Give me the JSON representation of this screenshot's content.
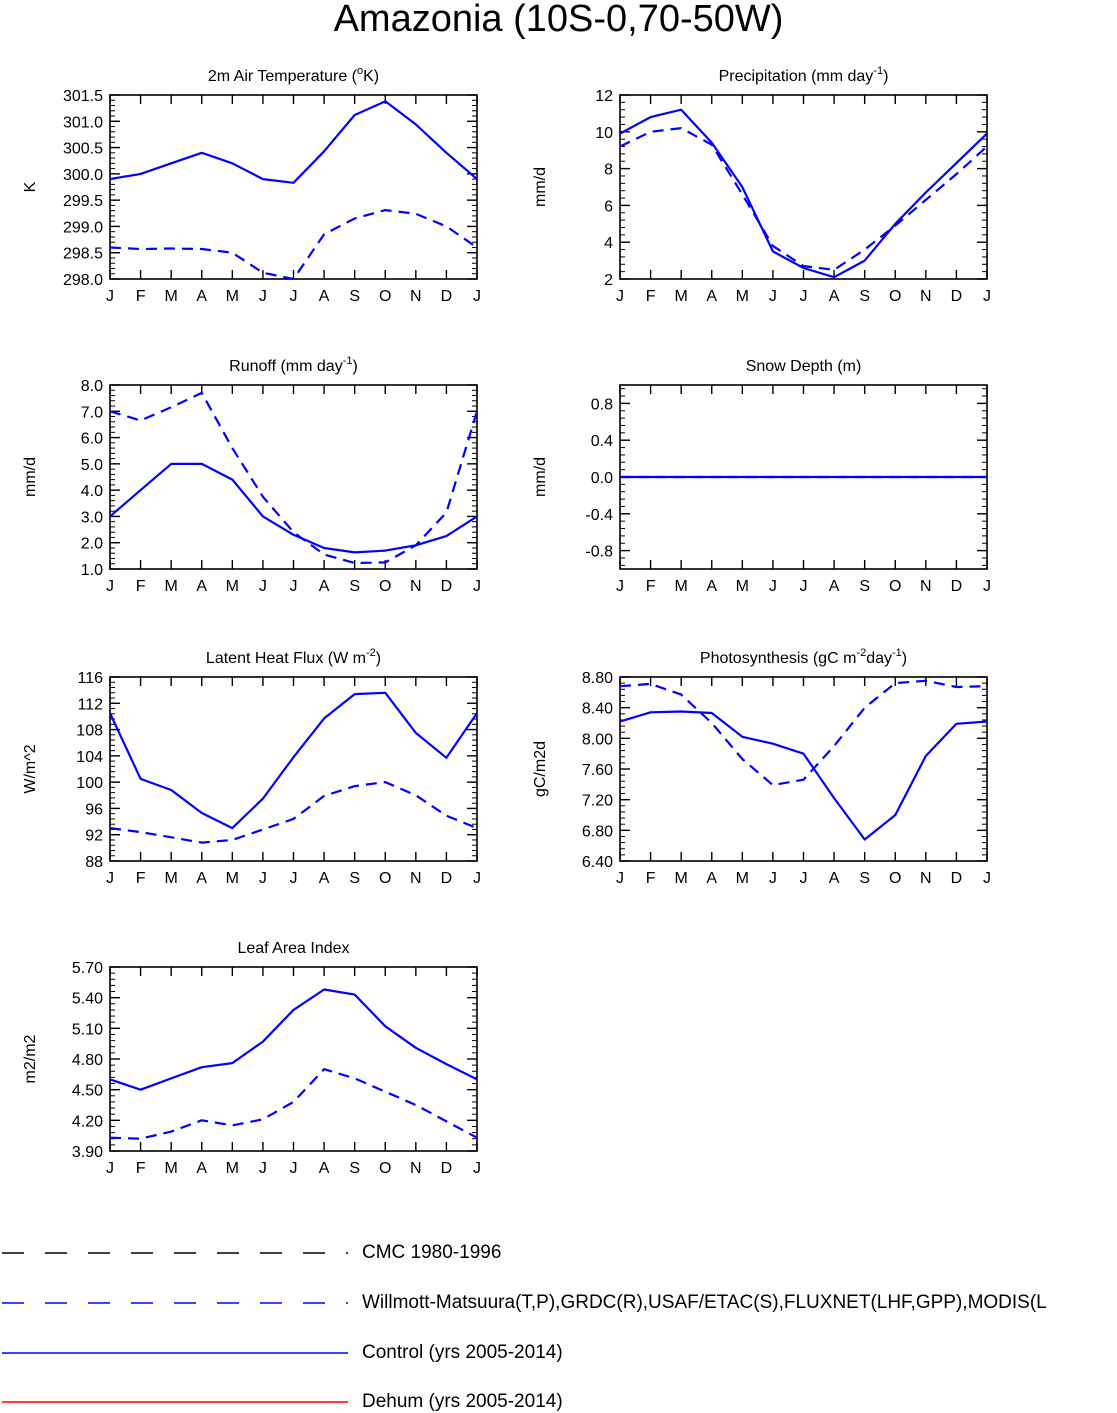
{
  "title": "Amazonia (10S-0,70-50W)",
  "colors": {
    "axis": "#000000",
    "model": "#0000ff",
    "cmc": "#000000",
    "obs": "#0000ff",
    "dehum": "#ff0000"
  },
  "chart_data": [
    {
      "type": "line",
      "id": "temp",
      "title": "2m Air Temperature (oK)",
      "title_parts": [
        "2m Air Temperature (",
        "o",
        "K)"
      ],
      "ylabel": "K",
      "categories": [
        "J",
        "F",
        "M",
        "A",
        "M",
        "J",
        "J",
        "A",
        "S",
        "O",
        "N",
        "D",
        "J"
      ],
      "ylim": [
        298.0,
        301.5
      ],
      "yticks": [
        "298.0",
        "298.5",
        "299.0",
        "299.5",
        "300.0",
        "300.5",
        "301.0",
        "301.5"
      ],
      "series": [
        {
          "name": "Control (yrs 2005-2014)",
          "style": "solid",
          "values": [
            299.9,
            300.0,
            300.2,
            300.4,
            300.2,
            299.9,
            299.83,
            300.43,
            301.12,
            301.38,
            300.94,
            300.4,
            299.9
          ]
        },
        {
          "name": "Willmott-Matsuura(T,P)",
          "style": "dashed",
          "values": [
            298.6,
            298.57,
            298.58,
            298.57,
            298.5,
            298.12,
            298.0,
            298.85,
            299.15,
            299.31,
            299.24,
            299.0,
            298.6
          ]
        }
      ]
    },
    {
      "type": "line",
      "id": "precip",
      "title": "Precipitation (mm day-1)",
      "title_parts": [
        "Precipitation (mm day",
        "-1",
        ")"
      ],
      "ylabel": "mm/d",
      "categories": [
        "J",
        "F",
        "M",
        "A",
        "M",
        "J",
        "J",
        "A",
        "S",
        "O",
        "N",
        "D",
        "J"
      ],
      "ylim": [
        2,
        12
      ],
      "yticks": [
        "2",
        "4",
        "6",
        "8",
        "10",
        "12"
      ],
      "series": [
        {
          "name": "Control (yrs 2005-2014)",
          "style": "solid",
          "values": [
            9.9,
            10.8,
            11.2,
            9.4,
            7.0,
            3.5,
            2.6,
            2.1,
            3.0,
            5.0,
            6.7,
            8.3,
            9.9
          ]
        },
        {
          "name": "Willmott-Matsuura(T,P)",
          "style": "dashed",
          "values": [
            9.2,
            10.0,
            10.2,
            9.3,
            6.6,
            3.8,
            2.7,
            2.5,
            3.6,
            4.9,
            6.3,
            7.7,
            9.2
          ]
        }
      ]
    },
    {
      "type": "line",
      "id": "runoff",
      "title": "Runoff (mm day-1)",
      "title_parts": [
        "Runoff (mm day",
        "-1",
        ")"
      ],
      "ylabel": "mm/d",
      "categories": [
        "J",
        "F",
        "M",
        "A",
        "M",
        "J",
        "J",
        "A",
        "S",
        "O",
        "N",
        "D",
        "J"
      ],
      "ylim": [
        1.0,
        8.0
      ],
      "yticks": [
        "1.0",
        "2.0",
        "3.0",
        "4.0",
        "5.0",
        "6.0",
        "7.0",
        "8.0"
      ],
      "series": [
        {
          "name": "Control (yrs 2005-2014)",
          "style": "solid",
          "values": [
            3.0,
            4.0,
            5.0,
            5.0,
            4.4,
            3.0,
            2.3,
            1.8,
            1.63,
            1.7,
            1.9,
            2.25,
            3.0
          ]
        },
        {
          "name": "GRDC(R)",
          "style": "dashed",
          "values": [
            7.0,
            6.65,
            7.15,
            7.7,
            5.6,
            3.75,
            2.4,
            1.55,
            1.23,
            1.25,
            1.9,
            3.15,
            7.0
          ]
        }
      ]
    },
    {
      "type": "line",
      "id": "snow",
      "title": "Snow Depth (m)",
      "title_parts": [
        "Snow Depth (m)",
        "",
        ""
      ],
      "ylabel": "mm/d",
      "categories": [
        "J",
        "F",
        "M",
        "A",
        "M",
        "J",
        "J",
        "A",
        "S",
        "O",
        "N",
        "D",
        "J"
      ],
      "ylim": [
        -1.0,
        1.0
      ],
      "yticks": [
        "-0.8",
        "-0.4",
        "0.0",
        "0.4",
        "0.8"
      ],
      "series": [
        {
          "name": "Control (yrs 2005-2014)",
          "style": "solid",
          "values": [
            0,
            0,
            0,
            0,
            0,
            0,
            0,
            0,
            0,
            0,
            0,
            0,
            0
          ]
        },
        {
          "name": "USAF/ETAC(S)",
          "style": "dashed",
          "values": [
            0,
            0,
            0,
            0,
            0,
            0,
            0,
            0,
            0,
            0,
            0,
            0,
            0
          ]
        }
      ]
    },
    {
      "type": "line",
      "id": "lhf",
      "title": "Latent Heat Flux (W m-2)",
      "title_parts": [
        "Latent Heat Flux (W m",
        "-2",
        ")"
      ],
      "ylabel": "W/m^2",
      "categories": [
        "J",
        "F",
        "M",
        "A",
        "M",
        "J",
        "J",
        "A",
        "S",
        "O",
        "N",
        "D",
        "J"
      ],
      "ylim": [
        88,
        116
      ],
      "yticks": [
        "88",
        "92",
        "96",
        "100",
        "104",
        "108",
        "112",
        "116"
      ],
      "series": [
        {
          "name": "Control (yrs 2005-2014)",
          "style": "solid",
          "values": [
            110.5,
            100.5,
            98.8,
            95.3,
            93.0,
            97.5,
            103.8,
            109.7,
            113.4,
            113.6,
            107.5,
            103.7,
            110.5
          ]
        },
        {
          "name": "FLUXNET(LHF)",
          "style": "dashed",
          "values": [
            93.0,
            92.4,
            91.6,
            90.8,
            91.2,
            92.8,
            94.4,
            97.9,
            99.4,
            100.0,
            98.0,
            94.9,
            93.0
          ]
        }
      ]
    },
    {
      "type": "line",
      "id": "gpp",
      "title": "Photosynthesis (gC m-2day-1)",
      "title_parts": [
        "Photosynthesis (gC m",
        "-2",
        "day",
        "-1",
        ")"
      ],
      "ylabel": "gC/m2d",
      "categories": [
        "J",
        "F",
        "M",
        "A",
        "M",
        "J",
        "J",
        "A",
        "S",
        "O",
        "N",
        "D",
        "J"
      ],
      "ylim": [
        6.4,
        8.8
      ],
      "yticks": [
        "6.40",
        "6.80",
        "7.20",
        "7.60",
        "8.00",
        "8.40",
        "8.80"
      ],
      "series": [
        {
          "name": "Control (yrs 2005-2014)",
          "style": "solid",
          "values": [
            8.22,
            8.34,
            8.35,
            8.33,
            8.02,
            7.93,
            7.8,
            7.22,
            6.68,
            7.0,
            7.77,
            8.19,
            8.22
          ]
        },
        {
          "name": "FLUXNET(GPP)",
          "style": "dashed",
          "values": [
            8.68,
            8.71,
            8.57,
            8.2,
            7.73,
            7.39,
            7.46,
            7.9,
            8.4,
            8.72,
            8.75,
            8.67,
            8.68
          ]
        }
      ]
    },
    {
      "type": "line",
      "id": "lai",
      "title": "Leaf Area Index",
      "title_parts": [
        "Leaf Area Index",
        "",
        ""
      ],
      "ylabel": "m2/m2",
      "categories": [
        "J",
        "F",
        "M",
        "A",
        "M",
        "J",
        "J",
        "A",
        "S",
        "O",
        "N",
        "D",
        "J"
      ],
      "ylim": [
        3.9,
        5.7
      ],
      "yticks": [
        "3.90",
        "4.20",
        "4.50",
        "4.80",
        "5.10",
        "5.40",
        "5.70"
      ],
      "series": [
        {
          "name": "Control (yrs 2005-2014)",
          "style": "solid",
          "values": [
            4.6,
            4.5,
            4.61,
            4.72,
            4.76,
            4.97,
            5.28,
            5.48,
            5.43,
            5.12,
            4.91,
            4.75,
            4.6
          ]
        },
        {
          "name": "MODIS(LAI)",
          "style": "dashed",
          "values": [
            4.03,
            4.02,
            4.09,
            4.2,
            4.15,
            4.21,
            4.38,
            4.7,
            4.61,
            4.48,
            4.35,
            4.19,
            4.03
          ]
        }
      ]
    }
  ],
  "legend": [
    {
      "label": "CMC 1980-1996",
      "style": "dashed",
      "color": "#000000"
    },
    {
      "label": "Willmott-Matsuura(T,P),GRDC(R),USAF/ETAC(S),FLUXNET(LHF,GPP),MODIS(L",
      "style": "dashed",
      "color": "#0000ff"
    },
    {
      "label": "Control (yrs 2005-2014)",
      "style": "solid",
      "color": "#0000ff"
    },
    {
      "label": "Dehum (yrs 2005-2014)",
      "style": "solid",
      "color": "#ff0000"
    }
  ]
}
